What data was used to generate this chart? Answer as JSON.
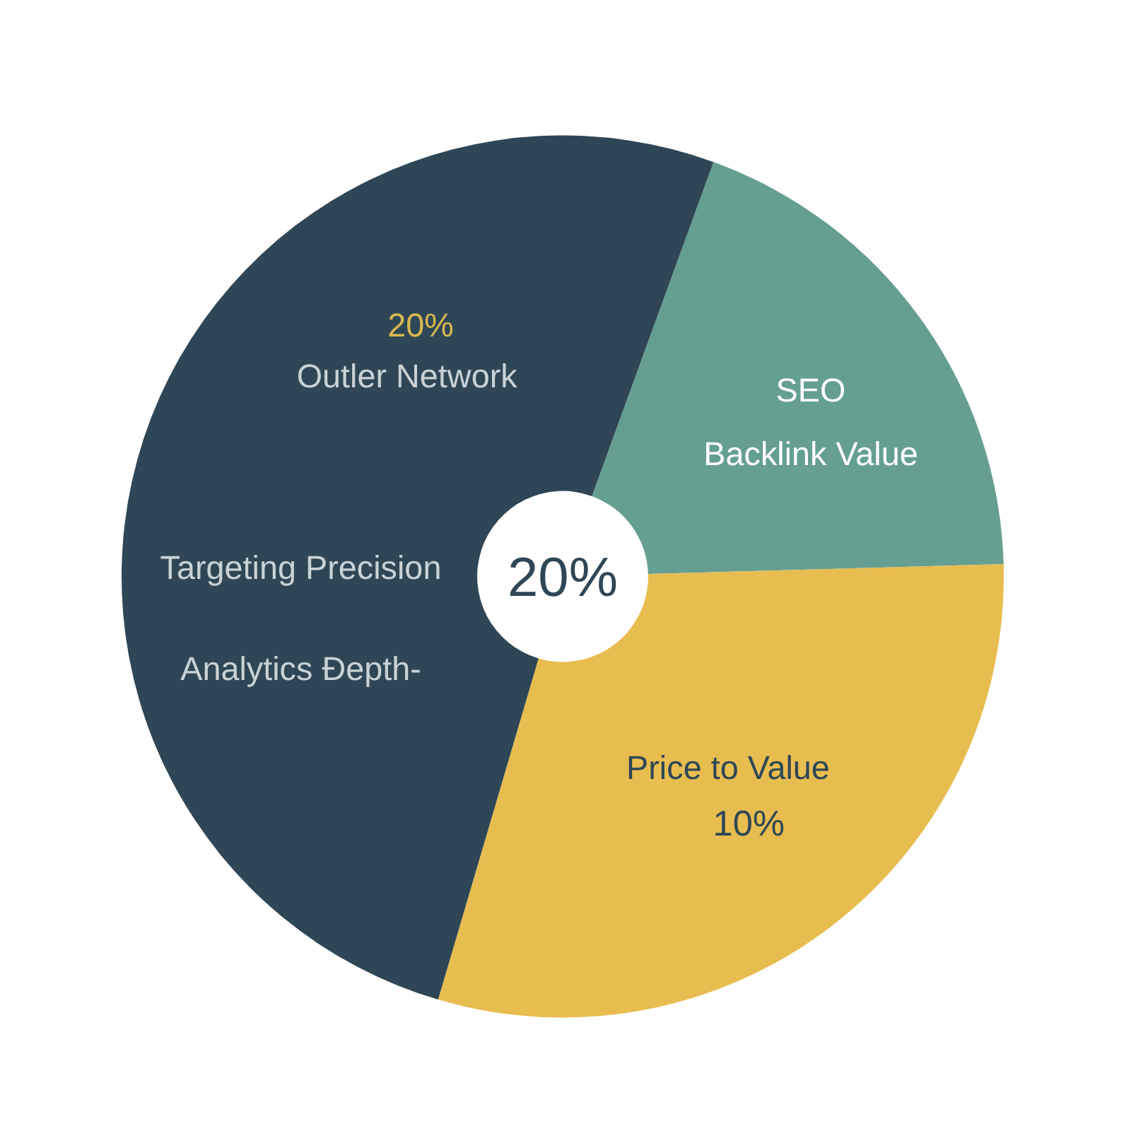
{
  "chart_data": {
    "type": "donut",
    "categories": [
      "SEO Backlink Value",
      "Price to Value",
      "Outler Network"
    ],
    "values": [
      19,
      30,
      51
    ],
    "colors": [
      "#659f91",
      "#e8bd4f",
      "#2f4656"
    ],
    "annotations": [
      "20%",
      "20%",
      "Targeting Precision",
      "Analytics Đepth-",
      "10%"
    ]
  }
}
